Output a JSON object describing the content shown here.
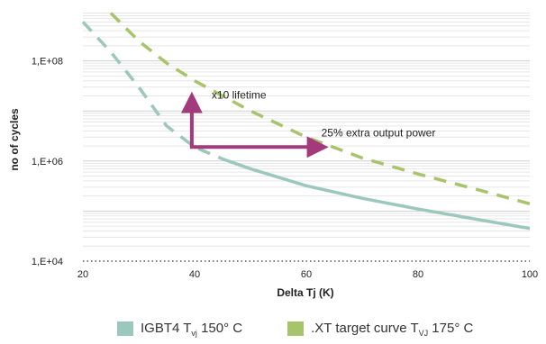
{
  "chart_data": {
    "type": "line",
    "xlabel": "Delta Tj (K)",
    "ylabel": "no of cycles",
    "xlim": [
      20,
      100
    ],
    "ylim": [
      10000,
      1000000000
    ],
    "yscale": "log",
    "x_ticks": [
      "20",
      "40",
      "60",
      "80",
      "100"
    ],
    "y_ticks": [
      "1,E+04",
      "1,E+06",
      "1,E+08"
    ],
    "grid": "horizontal",
    "legend_position": "bottom",
    "series": [
      {
        "name": "IGBT4 T",
        "name_sub": "vj",
        "name_suffix": " 150° C",
        "color": "#9cc7bd",
        "x": [
          20,
          25,
          30,
          35,
          40,
          45,
          50,
          60,
          70,
          80,
          90,
          100
        ],
        "y": [
          600000000,
          150000000,
          30000000,
          5000000,
          1900000,
          1100000,
          700000,
          320000,
          180000,
          110000,
          70000,
          45000
        ]
      },
      {
        "name": ".XT target curve T",
        "name_sub": "VJ",
        "name_suffix": " 175° C",
        "color": "#a8c46a",
        "x": [
          25,
          30,
          35,
          40,
          45,
          50,
          60,
          70,
          80,
          90,
          100
        ],
        "y": [
          900000000,
          250000000,
          90000000,
          40000000,
          20000000,
          10000000,
          3000000,
          1150000,
          550000,
          280000,
          140000
        ]
      }
    ],
    "annotations": [
      {
        "text": "x10 lifetime",
        "from": [
          39.5,
          1900000
        ],
        "to": [
          39.5,
          19000000
        ]
      },
      {
        "text": "25% extra output power",
        "from": [
          39.5,
          1900000
        ],
        "to": [
          63,
          1900000
        ]
      }
    ],
    "annotation_color": "#a23a7c"
  }
}
